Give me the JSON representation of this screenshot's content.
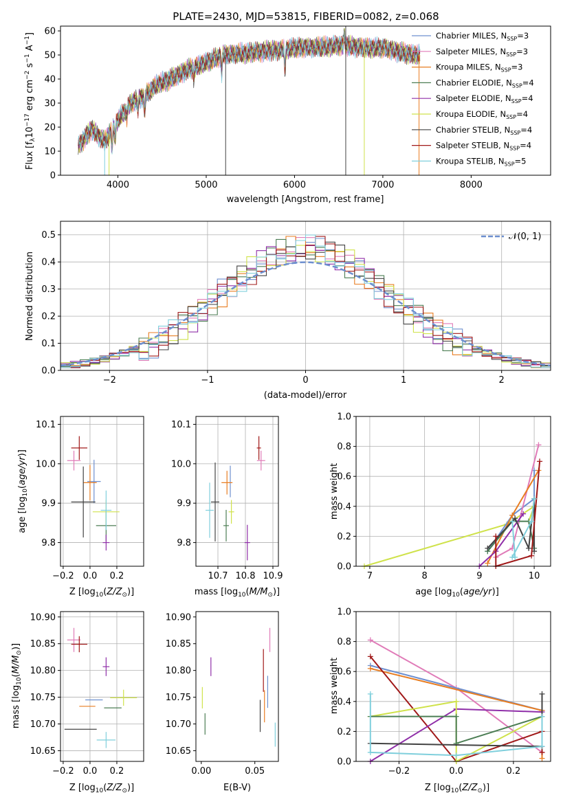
{
  "title": "PLATE=2430, MJD=53815, FIBERID=0082, z=0.068",
  "colors": {
    "chabrier_miles": "#6d8fcf",
    "salpeter_miles": "#e07bb8",
    "kroupa_miles": "#e87d21",
    "chabrier_elodie": "#4b7d53",
    "salpeter_elodie": "#8f2ea8",
    "kroupa_elodie": "#cfe24a",
    "chabrier_stelib": "#424242",
    "salpeter_stelib": "#a01818",
    "kroupa_stelib": "#7fcfdc",
    "gauss": "#6d8fcf"
  },
  "chart_data": [
    {
      "id": "spectrum",
      "type": "line",
      "xlabel": "wavelength [Angstrom, rest frame]",
      "ylabel": "Flux [f_λ10^-17 erg cm^-2 s^-1 A^-1]",
      "xlim": [
        3350,
        8900
      ],
      "ylim": [
        0,
        62
      ],
      "xticks": [
        4000,
        5000,
        6000,
        7000,
        8000
      ],
      "yticks": [
        0,
        10,
        20,
        30,
        40,
        50,
        60
      ],
      "grid": false,
      "legend_position": "right",
      "legend": [
        {
          "label": "Chabrier MILES, N",
          "sub": "SSP",
          "tail": "=3",
          "color": "chabrier_miles"
        },
        {
          "label": "Salpeter MILES, N",
          "sub": "SSP",
          "tail": "=3",
          "color": "salpeter_miles"
        },
        {
          "label": "Kroupa MILES, N",
          "sub": "SSP",
          "tail": "=3",
          "color": "kroupa_miles"
        },
        {
          "label": "Chabrier ELODIE, N",
          "sub": "SSP",
          "tail": "=4",
          "color": "chabrier_elodie"
        },
        {
          "label": "Salpeter ELODIE, N",
          "sub": "SSP",
          "tail": "=4",
          "color": "salpeter_elodie"
        },
        {
          "label": "Kroupa ELODIE, N",
          "sub": "SSP",
          "tail": "=4",
          "color": "kroupa_elodie"
        },
        {
          "label": "Chabrier STELIB, N",
          "sub": "SSP",
          "tail": "=4",
          "color": "chabrier_stelib"
        },
        {
          "label": "Salpeter STELIB, N",
          "sub": "SSP",
          "tail": "=4",
          "color": "salpeter_stelib"
        },
        {
          "label": "Kroupa STELIB, N",
          "sub": "SSP",
          "tail": "=5",
          "color": "kroupa_stelib"
        }
      ],
      "continuum": [
        [
          3550,
          12
        ],
        [
          3700,
          19
        ],
        [
          3850,
          14
        ],
        [
          4000,
          23
        ],
        [
          4150,
          30
        ],
        [
          4300,
          33
        ],
        [
          4450,
          38
        ],
        [
          4600,
          40
        ],
        [
          4800,
          44
        ],
        [
          5000,
          47
        ],
        [
          5200,
          50
        ],
        [
          5500,
          51
        ],
        [
          5800,
          52
        ],
        [
          6000,
          53
        ],
        [
          6200,
          53
        ],
        [
          6500,
          54
        ],
        [
          6800,
          53
        ],
        [
          7000,
          53
        ],
        [
          7200,
          51
        ],
        [
          7400,
          50
        ]
      ],
      "dips": [
        [
          3933,
          9
        ],
        [
          3968,
          8
        ],
        [
          4101,
          4
        ],
        [
          4227,
          5
        ],
        [
          4304,
          8
        ],
        [
          4861,
          5
        ],
        [
          5175,
          8
        ],
        [
          5892,
          10
        ],
        [
          6563,
          -6
        ]
      ]
    },
    {
      "id": "residuals",
      "type": "line",
      "xlabel": "(data-model)/error",
      "ylabel": "Normed distribution",
      "xlim": [
        -2.5,
        2.5
      ],
      "ylim": [
        0,
        0.55
      ],
      "xticks": [
        -2,
        -1,
        0,
        1,
        2
      ],
      "yticks": [
        0.0,
        0.1,
        0.2,
        0.3,
        0.4,
        0.5
      ],
      "grid": true,
      "legend_position": "top-right",
      "legend": [
        {
          "label": "𝒩(0, 1)",
          "color": "gauss"
        }
      ],
      "bin_width": 0.1
    },
    {
      "id": "z_age",
      "type": "scatter",
      "xlabel": "Z [log10(Z/Z⊙)]",
      "ylabel": "age [log10(age/yr)]",
      "xlim": [
        -0.22,
        0.4
      ],
      "ylim": [
        9.74,
        10.12
      ],
      "xticks": [
        -0.2,
        0.0,
        0.2
      ],
      "yticks": [
        9.8,
        9.9,
        10.0,
        10.1
      ],
      "grid": true,
      "points": [
        {
          "c": "chabrier_miles",
          "x": 0.03,
          "y": 9.955,
          "xe": 0.1,
          "ye": 0.11
        },
        {
          "c": "salpeter_miles",
          "x": -0.12,
          "y": 10.008,
          "xe": 0.1,
          "ye": 0.05
        },
        {
          "c": "kroupa_miles",
          "x": 0.0,
          "y": 9.952,
          "xe": 0.1,
          "ye": 0.09
        },
        {
          "c": "chabrier_elodie",
          "x": 0.12,
          "y": 9.843,
          "xe": 0.15,
          "ye": 0.08
        },
        {
          "c": "salpeter_elodie",
          "x": 0.12,
          "y": 9.8,
          "xe": 0.05,
          "ye": 0.04
        },
        {
          "c": "kroupa_elodie",
          "x": 0.12,
          "y": 9.878,
          "xe": 0.2,
          "ye": 0.06
        },
        {
          "c": "chabrier_stelib",
          "x": -0.05,
          "y": 9.903,
          "xe": 0.18,
          "ye": 0.18
        },
        {
          "c": "salpeter_stelib",
          "x": -0.08,
          "y": 10.04,
          "xe": 0.12,
          "ye": 0.06
        },
        {
          "c": "kroupa_stelib",
          "x": 0.12,
          "y": 9.882,
          "xe": 0.08,
          "ye": 0.1
        }
      ]
    },
    {
      "id": "mass_age",
      "type": "scatter",
      "xlabel": "mass [log10(M/M⊙)]",
      "ylabel": "",
      "xlim": [
        10.62,
        10.92
      ],
      "ylim": [
        9.74,
        10.12
      ],
      "xticks": [
        10.7,
        10.8,
        10.9
      ],
      "yticks": [
        9.8,
        9.9,
        10.0,
        10.1
      ],
      "grid": true,
      "points": [
        {
          "c": "chabrier_miles",
          "x": 10.745,
          "y": 9.955,
          "xe": 0.0,
          "ye": 0.08
        },
        {
          "c": "salpeter_miles",
          "x": 10.857,
          "y": 10.008,
          "xe": 0.03,
          "ye": 0.05
        },
        {
          "c": "kroupa_miles",
          "x": 10.733,
          "y": 9.952,
          "xe": 0.04,
          "ye": 0.06
        },
        {
          "c": "chabrier_elodie",
          "x": 10.73,
          "y": 9.843,
          "xe": 0.02,
          "ye": 0.08
        },
        {
          "c": "salpeter_elodie",
          "x": 10.807,
          "y": 9.8,
          "xe": 0.02,
          "ye": 0.09
        },
        {
          "c": "kroupa_elodie",
          "x": 10.749,
          "y": 9.878,
          "xe": 0.02,
          "ye": 0.06
        },
        {
          "c": "chabrier_stelib",
          "x": 10.69,
          "y": 9.903,
          "xe": 0.03,
          "ye": 0.2
        },
        {
          "c": "salpeter_stelib",
          "x": 10.849,
          "y": 10.04,
          "xe": 0.015,
          "ye": 0.06
        },
        {
          "c": "kroupa_stelib",
          "x": 10.67,
          "y": 9.882,
          "xe": 0.03,
          "ye": 0.14
        }
      ]
    },
    {
      "id": "age_weight",
      "type": "line",
      "xlabel": "age [log10(age/yr)]",
      "ylabel": "mass weight",
      "xlim": [
        6.75,
        10.3
      ],
      "ylim": [
        0,
        1.0
      ],
      "xticks": [
        7,
        8,
        9,
        10
      ],
      "yticks": [
        0.0,
        0.2,
        0.4,
        0.6,
        0.8,
        1.0
      ],
      "grid": true,
      "series": [
        {
          "c": "kroupa_elodie",
          "x": [
            6.9,
            9.5,
            10.0,
            9.9
          ],
          "y": [
            0.0,
            0.28,
            0.4,
            0.3
          ]
        },
        {
          "c": "chabrier_miles",
          "x": [
            9.15,
            9.6,
            10.0,
            10.0
          ],
          "y": [
            0.1,
            0.34,
            0.45,
            0.64
          ]
        },
        {
          "c": "salpeter_miles",
          "x": [
            9.3,
            9.6,
            10.08
          ],
          "y": [
            0.06,
            0.12,
            0.81
          ]
        },
        {
          "c": "kroupa_miles",
          "x": [
            9.15,
            9.6,
            10.08
          ],
          "y": [
            0.02,
            0.34,
            0.64
          ]
        },
        {
          "c": "chabrier_elodie",
          "x": [
            9.15,
            9.6,
            9.9,
            10.0
          ],
          "y": [
            0.1,
            0.3,
            0.3,
            0.12
          ]
        },
        {
          "c": "salpeter_elodie",
          "x": [
            9.0,
            9.3,
            9.8
          ],
          "y": [
            0.0,
            0.1,
            0.35
          ]
        },
        {
          "c": "chabrier_stelib",
          "x": [
            9.15,
            9.65,
            9.9,
            10.0,
            10.0
          ],
          "y": [
            0.12,
            0.32,
            0.12,
            0.45,
            0.1
          ]
        },
        {
          "c": "salpeter_stelib",
          "x": [
            9.3,
            9.3,
            9.95,
            10.1
          ],
          "y": [
            0.2,
            0.0,
            0.07,
            0.7
          ]
        },
        {
          "c": "kroupa_stelib",
          "x": [
            9.6,
            9.65,
            9.6,
            9.95,
            10.0
          ],
          "y": [
            0.3,
            0.06,
            0.06,
            0.3,
            0.45
          ]
        }
      ]
    },
    {
      "id": "z_mass",
      "type": "scatter",
      "xlabel": "Z [log10(Z/Z⊙)]",
      "ylabel": "mass [log10(M/M⊙)]",
      "xlim": [
        -0.22,
        0.4
      ],
      "ylim": [
        10.63,
        10.91
      ],
      "xticks": [
        -0.2,
        0.0,
        0.2
      ],
      "yticks": [
        10.65,
        10.7,
        10.75,
        10.8,
        10.85,
        10.9
      ],
      "grid": true,
      "points": [
        {
          "c": "chabrier_miles",
          "x": 0.03,
          "y": 10.745,
          "xe": 0.13,
          "ye": 0.0
        },
        {
          "c": "salpeter_miles",
          "x": -0.12,
          "y": 10.857,
          "xe": 0.1,
          "ye": 0.045
        },
        {
          "c": "kroupa_miles",
          "x": -0.02,
          "y": 10.733,
          "xe": 0.12,
          "ye": 0.0
        },
        {
          "c": "chabrier_elodie",
          "x": 0.17,
          "y": 10.73,
          "xe": 0.13,
          "ye": 0.0
        },
        {
          "c": "salpeter_elodie",
          "x": 0.12,
          "y": 10.807,
          "xe": 0.05,
          "ye": 0.035
        },
        {
          "c": "kroupa_elodie",
          "x": 0.25,
          "y": 10.749,
          "xe": 0.2,
          "ye": 0.03
        },
        {
          "c": "chabrier_stelib",
          "x": -0.07,
          "y": 10.69,
          "xe": 0.24,
          "ye": 0.0
        },
        {
          "c": "salpeter_stelib",
          "x": -0.08,
          "y": 10.849,
          "xe": 0.12,
          "ye": 0.03
        },
        {
          "c": "kroupa_stelib",
          "x": 0.12,
          "y": 10.67,
          "xe": 0.14,
          "ye": 0.03
        }
      ]
    },
    {
      "id": "ebv_mass",
      "type": "scatter",
      "xlabel": "E(B-V)",
      "ylabel": "",
      "xlim": [
        -0.005,
        0.072
      ],
      "ylim": [
        10.63,
        10.91
      ],
      "xticks": [
        0.0,
        0.05
      ],
      "yticks": [
        10.65,
        10.7,
        10.75,
        10.8,
        10.85,
        10.9
      ],
      "grid": false,
      "points": [
        {
          "c": "chabrier_miles",
          "x": 0.062,
          "y": 10.76,
          "xe": 0,
          "ye": 0.06
        },
        {
          "c": "salpeter_miles",
          "x": 0.064,
          "y": 10.857,
          "xe": 0,
          "ye": 0.045
        },
        {
          "c": "kroupa_miles",
          "x": 0.059,
          "y": 10.733,
          "xe": 0,
          "ye": 0.06
        },
        {
          "c": "chabrier_elodie",
          "x": 0.0035,
          "y": 10.7,
          "xe": 0,
          "ye": 0.04
        },
        {
          "c": "salpeter_elodie",
          "x": 0.009,
          "y": 10.807,
          "xe": 0,
          "ye": 0.035
        },
        {
          "c": "kroupa_elodie",
          "x": 0.001,
          "y": 10.749,
          "xe": 0,
          "ye": 0.04
        },
        {
          "c": "chabrier_stelib",
          "x": 0.055,
          "y": 10.715,
          "xe": 0,
          "ye": 0.06
        },
        {
          "c": "salpeter_stelib",
          "x": 0.058,
          "y": 10.8,
          "xe": 0,
          "ye": 0.08
        },
        {
          "c": "kroupa_stelib",
          "x": 0.069,
          "y": 10.68,
          "xe": 0,
          "ye": 0.045
        }
      ]
    },
    {
      "id": "z_weight",
      "type": "line",
      "xlabel": "Z [log10(Z/Z⊙)]",
      "ylabel": "mass weight",
      "xlim": [
        -0.35,
        0.33
      ],
      "ylim": [
        0,
        1.0
      ],
      "xticks": [
        -0.2,
        0.0,
        0.2
      ],
      "yticks": [
        0.0,
        0.2,
        0.4,
        0.6,
        0.8,
        1.0
      ],
      "grid": true,
      "series": [
        {
          "c": "salpeter_miles",
          "x": [
            -0.3,
            0.0,
            0.3,
            0.3
          ],
          "y": [
            0.81,
            0.49,
            0.06,
            0.34
          ]
        },
        {
          "c": "chabrier_miles",
          "x": [
            -0.3,
            0.3,
            0.3
          ],
          "y": [
            0.64,
            0.34,
            0.1
          ]
        },
        {
          "c": "kroupa_miles",
          "x": [
            -0.3,
            0.3,
            0.3
          ],
          "y": [
            0.62,
            0.34,
            0.02
          ]
        },
        {
          "c": "salpeter_stelib",
          "x": [
            -0.3,
            0.0,
            0.3,
            0.3
          ],
          "y": [
            0.7,
            0.0,
            0.2,
            0.06
          ]
        },
        {
          "c": "salpeter_elodie",
          "x": [
            -0.3,
            0.0,
            0.3
          ],
          "y": [
            0.0,
            0.35,
            0.33
          ]
        },
        {
          "c": "kroupa_elodie",
          "x": [
            -0.3,
            0.0,
            0.0,
            0.3
          ],
          "y": [
            0.3,
            0.4,
            0.0,
            0.3
          ]
        },
        {
          "c": "chabrier_elodie",
          "x": [
            -0.3,
            0.0,
            0.0,
            0.3
          ],
          "y": [
            0.3,
            0.3,
            0.12,
            0.3
          ]
        },
        {
          "c": "chabrier_stelib",
          "x": [
            -0.3,
            0.3,
            0.3
          ],
          "y": [
            0.12,
            0.1,
            0.45
          ]
        },
        {
          "c": "kroupa_stelib",
          "x": [
            -0.3,
            -0.3,
            0.0,
            0.3,
            0.3
          ],
          "y": [
            0.45,
            0.06,
            0.04,
            0.1,
            0.3
          ]
        }
      ]
    }
  ]
}
